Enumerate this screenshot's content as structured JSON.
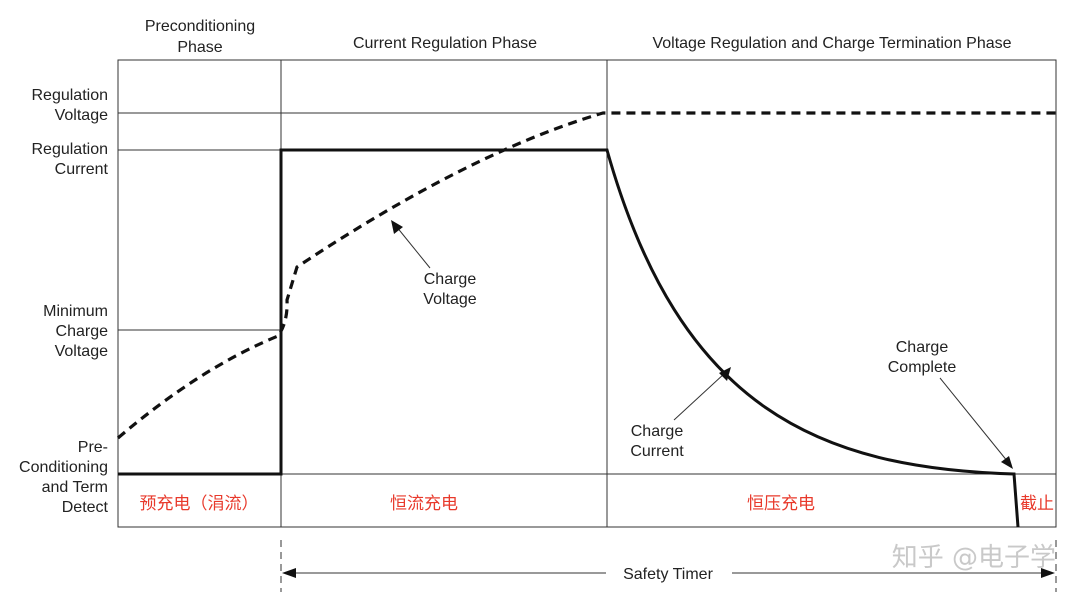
{
  "phases": {
    "precondition": [
      "Preconditioning",
      "Phase"
    ],
    "current_regulation": "Current Regulation Phase",
    "voltage_regulation": "Voltage Regulation and Charge Termination Phase"
  },
  "y_labels": {
    "regulation_voltage": [
      "Regulation",
      "Voltage"
    ],
    "regulation_current": [
      "Regulation",
      "Current"
    ],
    "minimum_charge_voltage": [
      "Minimum",
      "Charge",
      "Voltage"
    ],
    "pre_conditioning": [
      "Pre-",
      "Conditioning",
      "and Term",
      "Detect"
    ]
  },
  "annotations": {
    "charge_voltage": [
      "Charge",
      "Voltage"
    ],
    "charge_current": [
      "Charge",
      "Current"
    ],
    "charge_complete": [
      "Charge",
      "Complete"
    ]
  },
  "stage_labels_cn": {
    "trickle": "预充电（涓流）",
    "constant_current": "恒流充电",
    "constant_voltage": "恒压充电",
    "cutoff": "截止"
  },
  "safety_timer": "Safety Timer",
  "watermark": "知乎 @电子学",
  "colors": {
    "stage_label": "#e8392b",
    "curve": "#111111",
    "watermark": "#c9c9c9"
  }
}
